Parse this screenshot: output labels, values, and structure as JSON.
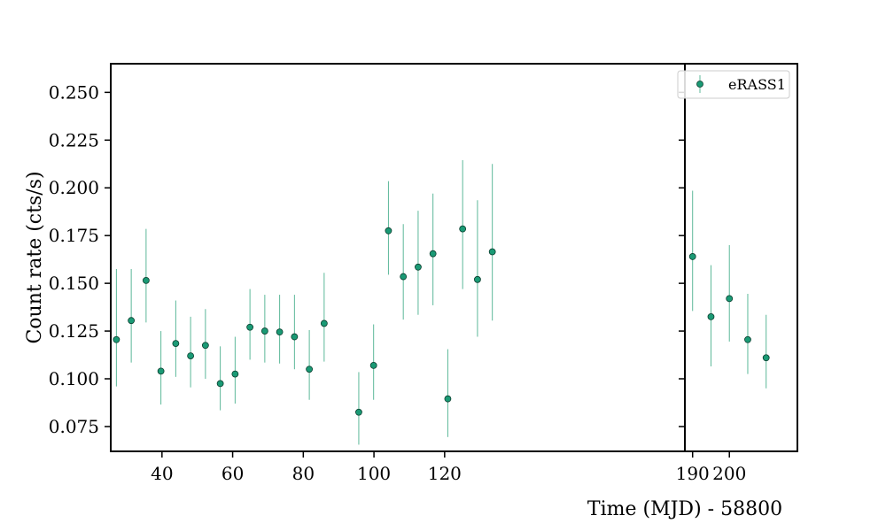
{
  "chart_data": {
    "type": "scatter",
    "style": "errorbar",
    "xlabel": "Time (MJD) - 58800",
    "ylabel": "Count rate (cts/s)",
    "ylim": [
      0.062,
      0.265
    ],
    "y_ticks": [
      0.075,
      0.1,
      0.125,
      0.15,
      0.175,
      0.2,
      0.225,
      0.25
    ],
    "y_tick_labels": [
      "0.075",
      "0.100",
      "0.125",
      "0.150",
      "0.175",
      "0.200",
      "0.225",
      "0.250"
    ],
    "broken_x_axis": true,
    "panels": [
      {
        "xlim": [
          25.5,
          188
        ],
        "x_ticks": [
          40,
          60,
          80,
          100,
          120
        ],
        "x_tick_labels": [
          "40",
          "60",
          "80",
          "100",
          "120"
        ]
      },
      {
        "xlim": [
          187.9,
          218.5
        ],
        "x_ticks": [
          190,
          200
        ],
        "x_tick_labels": [
          "190",
          "200"
        ]
      }
    ],
    "legend": {
      "position": "top-right",
      "entries": [
        "eRASS1"
      ]
    },
    "colors": {
      "marker_fill": "#1a9a75",
      "marker_edge": "#0a3d2d",
      "errorbar": "#5cb899"
    },
    "series": [
      {
        "name": "eRASS1",
        "points": [
          {
            "x": 27.1,
            "y": 0.1205,
            "ylo": 0.096,
            "yhi": 0.1575
          },
          {
            "x": 31.3,
            "y": 0.1305,
            "ylo": 0.1085,
            "yhi": 0.1575
          },
          {
            "x": 35.5,
            "y": 0.1515,
            "ylo": 0.1295,
            "yhi": 0.1785
          },
          {
            "x": 39.7,
            "y": 0.104,
            "ylo": 0.0865,
            "yhi": 0.125
          },
          {
            "x": 43.9,
            "y": 0.1185,
            "ylo": 0.101,
            "yhi": 0.141
          },
          {
            "x": 48.1,
            "y": 0.112,
            "ylo": 0.0955,
            "yhi": 0.1325
          },
          {
            "x": 52.3,
            "y": 0.1175,
            "ylo": 0.1,
            "yhi": 0.1365
          },
          {
            "x": 56.5,
            "y": 0.0975,
            "ylo": 0.0835,
            "yhi": 0.117
          },
          {
            "x": 60.7,
            "y": 0.1025,
            "ylo": 0.087,
            "yhi": 0.122
          },
          {
            "x": 64.9,
            "y": 0.127,
            "ylo": 0.11,
            "yhi": 0.147
          },
          {
            "x": 69.1,
            "y": 0.125,
            "ylo": 0.1085,
            "yhi": 0.144
          },
          {
            "x": 73.3,
            "y": 0.1245,
            "ylo": 0.108,
            "yhi": 0.144
          },
          {
            "x": 77.5,
            "y": 0.122,
            "ylo": 0.105,
            "yhi": 0.144
          },
          {
            "x": 81.7,
            "y": 0.105,
            "ylo": 0.089,
            "yhi": 0.1255
          },
          {
            "x": 85.9,
            "y": 0.129,
            "ylo": 0.109,
            "yhi": 0.1555
          },
          {
            "x": 95.7,
            "y": 0.0825,
            "ylo": 0.0655,
            "yhi": 0.1035
          },
          {
            "x": 99.9,
            "y": 0.107,
            "ylo": 0.089,
            "yhi": 0.1285
          },
          {
            "x": 104.1,
            "y": 0.1775,
            "ylo": 0.1545,
            "yhi": 0.2035
          },
          {
            "x": 108.3,
            "y": 0.1535,
            "ylo": 0.131,
            "yhi": 0.181
          },
          {
            "x": 112.5,
            "y": 0.1585,
            "ylo": 0.1335,
            "yhi": 0.188
          },
          {
            "x": 116.7,
            "y": 0.1655,
            "ylo": 0.1385,
            "yhi": 0.197
          },
          {
            "x": 120.9,
            "y": 0.0895,
            "ylo": 0.0695,
            "yhi": 0.1155
          },
          {
            "x": 125.1,
            "y": 0.1785,
            "ylo": 0.147,
            "yhi": 0.2145
          },
          {
            "x": 129.3,
            "y": 0.152,
            "ylo": 0.122,
            "yhi": 0.1935
          },
          {
            "x": 133.5,
            "y": 0.1665,
            "ylo": 0.1305,
            "yhi": 0.2125
          },
          {
            "x": 190.0,
            "y": 0.164,
            "ylo": 0.1355,
            "yhi": 0.1985
          },
          {
            "x": 195.0,
            "y": 0.1325,
            "ylo": 0.1065,
            "yhi": 0.1595
          },
          {
            "x": 200.0,
            "y": 0.142,
            "ylo": 0.1195,
            "yhi": 0.17
          },
          {
            "x": 205.0,
            "y": 0.1205,
            "ylo": 0.1025,
            "yhi": 0.1445
          },
          {
            "x": 210.0,
            "y": 0.111,
            "ylo": 0.095,
            "yhi": 0.1335
          }
        ]
      }
    ]
  }
}
